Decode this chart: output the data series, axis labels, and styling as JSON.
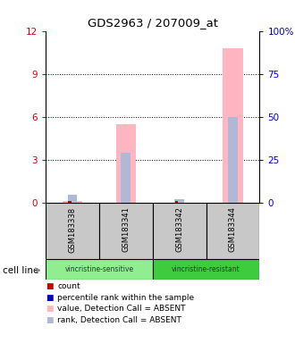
{
  "title": "GDS2963 / 207009_at",
  "samples": [
    "GSM183338",
    "GSM183341",
    "GSM183342",
    "GSM183344"
  ],
  "group1_label": "vincristine-sensitive",
  "group2_label": "vincristine-resistant",
  "group1_color": "#90EE90",
  "group2_color": "#3ECC3E",
  "pink_bars": [
    0.12,
    5.5,
    0.0,
    10.8
  ],
  "lavender_bars": [
    0.55,
    3.5,
    0.2,
    6.0
  ],
  "red_bars": [
    0.08,
    0.0,
    0.08,
    0.0
  ],
  "blue_bars": [
    0.0,
    0.0,
    0.0,
    0.0
  ],
  "ylim_left": [
    0,
    12
  ],
  "ylim_right": [
    0,
    100
  ],
  "yticks_left": [
    0,
    3,
    6,
    9,
    12
  ],
  "yticks_right": [
    0,
    25,
    50,
    75,
    100
  ],
  "ytick_labels_right": [
    "0",
    "25",
    "50",
    "75",
    "100%"
  ],
  "left_axis_color": "#CC0000",
  "right_axis_color": "#0000CC",
  "pink_color": "#FFB6C1",
  "lavender_color": "#B0B8D8",
  "red_color": "#CC0000",
  "blue_color": "#0000CC",
  "sample_box_color": "#C8C8C8",
  "legend_items": [
    {
      "color": "#CC0000",
      "label": "count"
    },
    {
      "color": "#0000CC",
      "label": "percentile rank within the sample"
    },
    {
      "color": "#FFB6C1",
      "label": "value, Detection Call = ABSENT"
    },
    {
      "color": "#B0B8D8",
      "label": "rank, Detection Call = ABSENT"
    }
  ]
}
